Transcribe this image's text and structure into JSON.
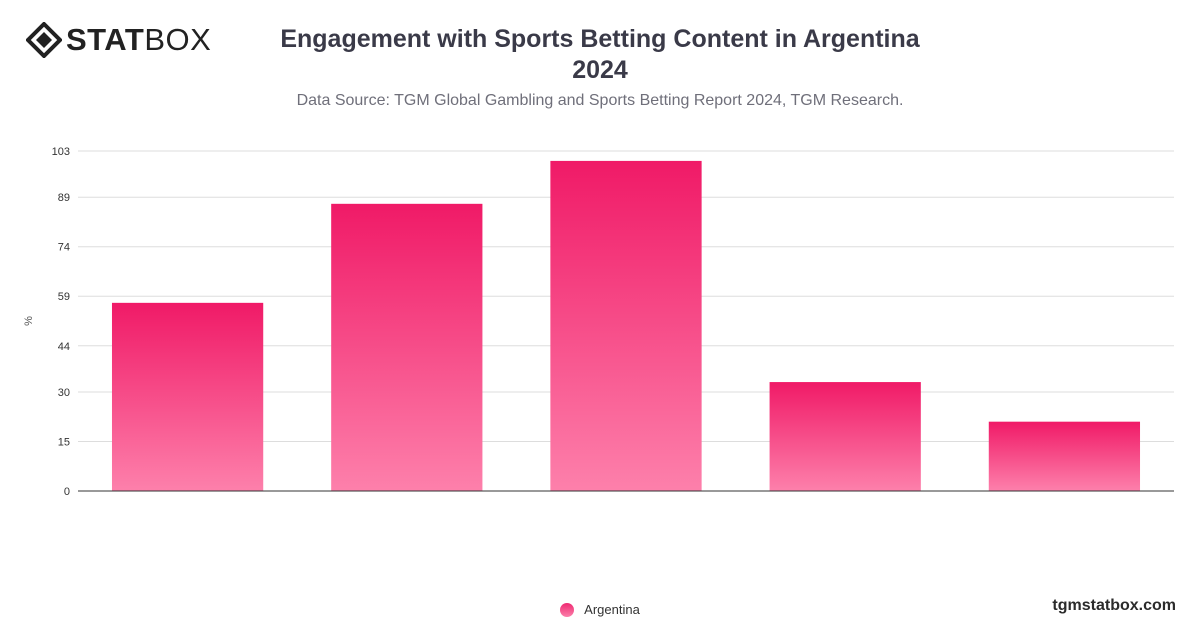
{
  "brand": {
    "name_bold": "STAT",
    "name_light": "BOX",
    "site": "tgmstatbox.com",
    "icon": "diamond-logo-icon"
  },
  "colors": {
    "bar_top": "#f01a67",
    "bar_bottom": "#fd80ab",
    "title": "#3a3a48"
  },
  "chart_data": {
    "type": "bar",
    "title_lines": [
      "Engagement with Sports Betting Content in Argentina",
      "2024"
    ],
    "subtitle": "Data Source: TGM Global Gambling and Sports Betting Report 2024, TGM Research.",
    "ylabel": "%",
    "xlabel": "",
    "yticks": [
      0,
      15,
      30,
      44,
      59,
      74,
      89,
      103
    ],
    "ylim": [
      0,
      103
    ],
    "grid": true,
    "legend_position": "bottom",
    "series": [
      {
        "name": "Argentina",
        "values": [
          57,
          87,
          100,
          33,
          21
        ]
      }
    ]
  }
}
